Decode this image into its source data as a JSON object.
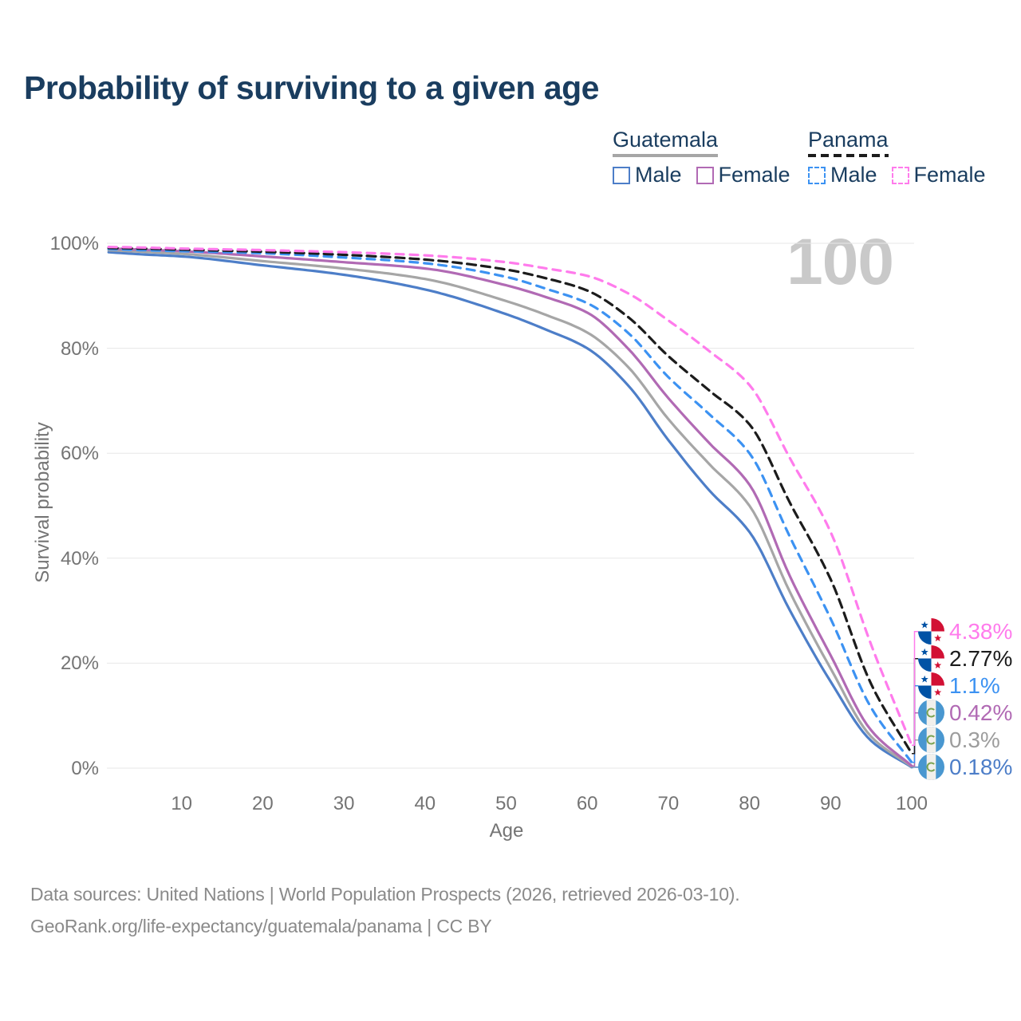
{
  "title": "Probability of surviving to a given age",
  "watermark": "100",
  "legend": {
    "groups": [
      {
        "id": "guatemala",
        "label": "Guatemala",
        "underline_style": "solid",
        "underline_color": "#a6a6a6",
        "items": [
          {
            "id": "guatemala-male",
            "label": "Male",
            "color": "#4d7ec8",
            "dashed": false
          },
          {
            "id": "guatemala-female",
            "label": "Female",
            "color": "#b16ab4",
            "dashed": false
          }
        ]
      },
      {
        "id": "panama",
        "label": "Panama",
        "underline_style": "dashed",
        "underline_color": "#1c1c1c",
        "items": [
          {
            "id": "panama-male",
            "label": "Male",
            "color": "#3c92f2",
            "dashed": true
          },
          {
            "id": "panama-female",
            "label": "Female",
            "color": "#ff7bec",
            "dashed": true
          }
        ]
      }
    ]
  },
  "chart_data": {
    "type": "line",
    "title": "Probability of surviving to a given age",
    "xlabel": "Age",
    "ylabel": "Survival probability",
    "xlim": [
      0,
      100
    ],
    "ylim": [
      0,
      100
    ],
    "grid": "horizontal-only",
    "legend_position": "top-right",
    "x_ticks": [
      {
        "label": "10",
        "value": 10
      },
      {
        "label": "20",
        "value": 20
      },
      {
        "label": "30",
        "value": 30
      },
      {
        "label": "40",
        "value": 40
      },
      {
        "label": "50",
        "value": 50
      },
      {
        "label": "60",
        "value": 60
      },
      {
        "label": "70",
        "value": 70
      },
      {
        "label": "80",
        "value": 80
      },
      {
        "label": "90",
        "value": 90
      },
      {
        "label": "100",
        "value": 100
      }
    ],
    "y_ticks": [
      {
        "label": "100%",
        "value": 100
      },
      {
        "label": "80%",
        "value": 80
      },
      {
        "label": "60%",
        "value": 60
      },
      {
        "label": "40%",
        "value": 40
      },
      {
        "label": "20%",
        "value": 20
      },
      {
        "label": "0%",
        "value": 0
      }
    ],
    "x": [
      0,
      1,
      5,
      10,
      20,
      30,
      40,
      50,
      55,
      60,
      65,
      70,
      75,
      80,
      85,
      90,
      95,
      100
    ],
    "series": [
      {
        "id": "guatemala-male",
        "label": "Guatemala Male",
        "country": "guatemala",
        "sex": "male",
        "color": "#4d7ec8",
        "label_color": "#4d7ec8",
        "dashed": false,
        "end_label": "0.18%",
        "values": [
          100,
          98.3,
          97.9,
          97.5,
          95.8,
          94.0,
          91.2,
          86.5,
          83.5,
          80.0,
          73.0,
          62.5,
          53.0,
          45.0,
          30.0,
          16.5,
          5.2,
          0.18
        ]
      },
      {
        "id": "guatemala-both",
        "label": "Guatemala Both sexes",
        "country": "guatemala",
        "sex": "both",
        "color": "#a6a6a6",
        "label_color": "#9d9d9d",
        "dashed": false,
        "end_label": "0.3%",
        "values": [
          100,
          98.7,
          98.4,
          98.0,
          96.6,
          95.2,
          93.2,
          89.0,
          86.3,
          83.0,
          76.5,
          66.5,
          58.0,
          50.0,
          33.5,
          19.0,
          6.0,
          0.3
        ]
      },
      {
        "id": "guatemala-female",
        "label": "Guatemala Female",
        "country": "guatemala",
        "sex": "female",
        "color": "#b16ab4",
        "label_color": "#b16ab4",
        "dashed": false,
        "end_label": "0.42%",
        "values": [
          100,
          99.0,
          98.8,
          98.5,
          97.5,
          96.4,
          95.2,
          92.0,
          89.7,
          86.8,
          80.0,
          70.5,
          62.0,
          54.0,
          36.5,
          21.5,
          7.2,
          0.42
        ]
      },
      {
        "id": "panama-male",
        "label": "Panama Male",
        "country": "panama",
        "sex": "male",
        "color": "#3c92f2",
        "label_color": "#3c92f2",
        "dashed": true,
        "end_label": "1.1%",
        "values": [
          100,
          98.9,
          98.7,
          98.5,
          98.1,
          97.3,
          96.2,
          93.6,
          91.3,
          88.6,
          83.0,
          74.5,
          67.5,
          60.0,
          44.0,
          28.5,
          11.5,
          1.1
        ]
      },
      {
        "id": "panama-both",
        "label": "Panama Both sexes",
        "country": "panama",
        "sex": "both",
        "color": "#1c1c1c",
        "label_color": "#1c1c1c",
        "dashed": true,
        "end_label": "2.77%",
        "values": [
          100,
          99.1,
          99.0,
          98.8,
          98.4,
          97.8,
          96.9,
          95.0,
          93.3,
          91.0,
          86.0,
          78.5,
          72.0,
          65.5,
          50.5,
          36.0,
          16.0,
          2.77
        ]
      },
      {
        "id": "panama-female",
        "label": "Panama Female",
        "country": "panama",
        "sex": "female",
        "color": "#ff7bec",
        "label_color": "#ff7bec",
        "dashed": true,
        "end_label": "4.38%",
        "values": [
          100,
          99.3,
          99.2,
          99.0,
          98.7,
          98.3,
          97.7,
          96.4,
          95.2,
          93.8,
          90.5,
          85.3,
          79.5,
          73.0,
          59.0,
          45.0,
          23.5,
          4.38
        ]
      }
    ]
  },
  "footer": {
    "line1": "Data sources: United Nations | World Population Prospects (2026, retrieved 2026-03-10).",
    "line2": "GeoRank.org/life-expectancy/guatemala/panama | CC BY"
  },
  "colors": {
    "title_text": "#1a3d5f",
    "axis_text": "#747474",
    "gridline": "#e7e7e7",
    "watermark": "#c9c9c9",
    "footer_text": "#8a8a8a"
  }
}
